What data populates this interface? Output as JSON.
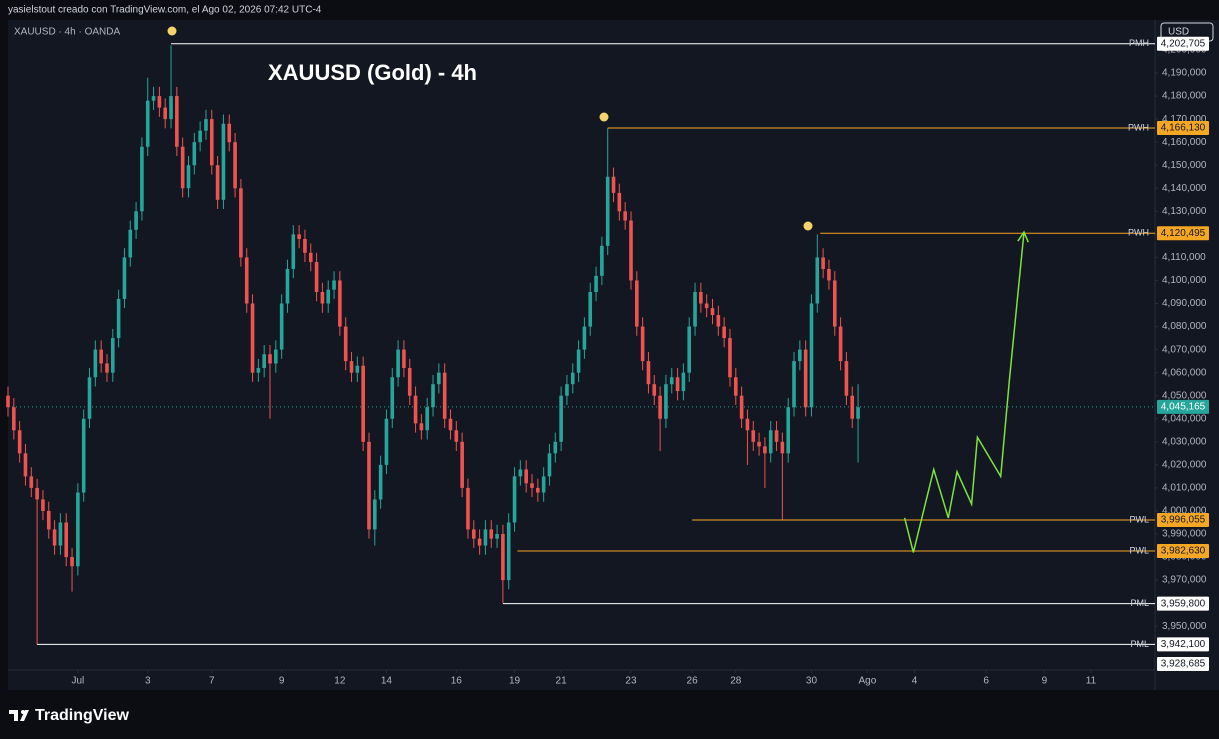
{
  "header": {
    "credit": "yasielstout creado con TradingView.com, el Ago 02, 2026 07:42 UTC-4",
    "symbol": "XAUUSD · 4h · OANDA",
    "currency": "USD"
  },
  "footer": {
    "brand": "TradingView"
  },
  "chart_data": {
    "type": "candlestick",
    "title": "XAUUSD (Gold) - 4h",
    "up_color": "#26a69a",
    "down_color": "#ef5350",
    "xlim": [
      0,
      197
    ],
    "ylim": [
      3931,
      4213
    ],
    "grid": false,
    "xticks": [
      {
        "value": 12,
        "label": "Jul"
      },
      {
        "value": 24,
        "label": "3"
      },
      {
        "value": 35,
        "label": "7"
      },
      {
        "value": 47,
        "label": "9"
      },
      {
        "value": 57,
        "label": "12"
      },
      {
        "value": 65,
        "label": "14"
      },
      {
        "value": 77,
        "label": "16"
      },
      {
        "value": 87,
        "label": "19"
      },
      {
        "value": 95,
        "label": "21"
      },
      {
        "value": 107,
        "label": "23"
      },
      {
        "value": 117.5,
        "label": "26"
      },
      {
        "value": 125,
        "label": "28"
      },
      {
        "value": 138,
        "label": "30"
      },
      {
        "value": 147.6,
        "label": "Ago"
      },
      {
        "value": 155.7,
        "label": "4"
      },
      {
        "value": 168,
        "label": "6"
      },
      {
        "value": 178,
        "label": "9"
      },
      {
        "value": 186,
        "label": "11"
      }
    ],
    "yticks": [
      {
        "value": 3950,
        "label": "3,950,000"
      },
      {
        "value": 3960,
        "label": "3,960,000"
      },
      {
        "value": 3970,
        "label": "3,970,000"
      },
      {
        "value": 3980,
        "label": "3,980,000"
      },
      {
        "value": 3990,
        "label": "3,990,000"
      },
      {
        "value": 4000,
        "label": "4,000,000"
      },
      {
        "value": 4010,
        "label": "4,010,000"
      },
      {
        "value": 4020,
        "label": "4,020,000"
      },
      {
        "value": 4030,
        "label": "4,030,000"
      },
      {
        "value": 4040,
        "label": "4,040,000"
      },
      {
        "value": 4050,
        "label": "4,050,000"
      },
      {
        "value": 4060,
        "label": "4,060,000"
      },
      {
        "value": 4070,
        "label": "4,070,000"
      },
      {
        "value": 4080,
        "label": "4,080,000"
      },
      {
        "value": 4090,
        "label": "4,090,000"
      },
      {
        "value": 4100,
        "label": "4,100,000"
      },
      {
        "value": 4110,
        "label": "4,110,000"
      },
      {
        "value": 4120,
        "label": "4,120,000"
      },
      {
        "value": 4130,
        "label": "4,130,000"
      },
      {
        "value": 4140,
        "label": "4,140,000"
      },
      {
        "value": 4150,
        "label": "4,150,000"
      },
      {
        "value": 4160,
        "label": "4,160,000"
      },
      {
        "value": 4170,
        "label": "4,170,000"
      },
      {
        "value": 4180,
        "label": "4,180,000"
      },
      {
        "value": 4190,
        "label": "4,190,000"
      },
      {
        "value": 4200,
        "label": "4,200,000"
      }
    ],
    "open": [
      4050,
      4045,
      4035,
      4025,
      4015,
      4010,
      4005,
      4000,
      3992,
      3985,
      3995,
      3980,
      3976,
      4008,
      4040,
      4058,
      4070,
      4064,
      4060,
      4075,
      4092,
      4110,
      4122,
      4130,
      4158,
      4178,
      4180,
      4175,
      4170,
      4180,
      4158,
      4140,
      4150,
      4160,
      4165,
      4170,
      4150,
      4135,
      4168,
      4160,
      4140,
      4110,
      4090,
      4060,
      4062,
      4068,
      4064,
      4070,
      4090,
      4105,
      4120,
      4118,
      4112,
      4108,
      4095,
      4090,
      4096,
      4100,
      4080,
      4065,
      4060,
      4063,
      4030,
      3992,
      4005,
      4020,
      4040,
      4058,
      4070,
      4062,
      4050,
      4038,
      4035,
      4045,
      4055,
      4060,
      4040,
      4035,
      4030,
      4010,
      3992,
      3988,
      3985,
      3992,
      3988,
      3990,
      3970,
      3995,
      4015,
      4018,
      4012,
      4010,
      4008,
      4015,
      4025,
      4030,
      4050,
      4055,
      4060,
      4070,
      4080,
      4095,
      4102,
      4115,
      4145,
      4138,
      4130,
      4126,
      4100,
      4080,
      4065,
      4055,
      4050,
      4040,
      4055,
      4058,
      4052,
      4060,
      4080,
      4095,
      4090,
      4088,
      4085,
      4080,
      4075,
      4058,
      4050,
      4040,
      4035,
      4030,
      4028,
      4025,
      4035,
      4030,
      4025,
      4045,
      4065,
      4070,
      4045,
      4090,
      4110,
      4105,
      4100,
      4080,
      4065,
      4050,
      4040
    ],
    "high": [
      4054,
      4049,
      4039,
      4029,
      4019,
      4014,
      4009,
      4004,
      3996,
      3999,
      3999,
      3984,
      4012,
      4044,
      4062,
      4074,
      4074,
      4068,
      4079,
      4096,
      4114,
      4126,
      4134,
      4162,
      4188,
      4184,
      4184,
      4179,
      4202,
      4184,
      4162,
      4154,
      4164,
      4169,
      4174,
      4174,
      4154,
      4172,
      4172,
      4164,
      4144,
      4114,
      4094,
      4066,
      4072,
      4072,
      4074,
      4094,
      4109,
      4124,
      4124,
      4122,
      4116,
      4112,
      4099,
      4100,
      4104,
      4104,
      4084,
      4069,
      4067,
      4067,
      4034,
      4009,
      4024,
      4044,
      4062,
      4074,
      4074,
      4066,
      4054,
      4042,
      4049,
      4059,
      4064,
      4064,
      4044,
      4039,
      4034,
      4014,
      3996,
      3992,
      3996,
      3996,
      3994,
      3994,
      3999,
      4019,
      4022,
      4022,
      4016,
      4014,
      4019,
      4029,
      4034,
      4054,
      4059,
      4064,
      4074,
      4084,
      4099,
      4106,
      4119,
      4166,
      4149,
      4142,
      4134,
      4130,
      4104,
      4084,
      4069,
      4059,
      4054,
      4059,
      4062,
      4062,
      4064,
      4084,
      4099,
      4099,
      4094,
      4092,
      4089,
      4084,
      4079,
      4062,
      4054,
      4044,
      4039,
      4034,
      4032,
      4039,
      4039,
      4034,
      4049,
      4069,
      4074,
      4074,
      4094,
      4120,
      4114,
      4109,
      4104,
      4084,
      4069,
      4054,
      4055
    ],
    "low": [
      4041,
      4031,
      4021,
      4011,
      4006,
      3942,
      3996,
      3988,
      3981,
      3981,
      3976,
      3965,
      3972,
      4004,
      4036,
      4054,
      4060,
      4056,
      4056,
      4071,
      4088,
      4106,
      4118,
      4126,
      4154,
      4174,
      4171,
      4166,
      4166,
      4154,
      4136,
      4136,
      4146,
      4156,
      4161,
      4146,
      4131,
      4131,
      4156,
      4136,
      4106,
      4086,
      4056,
      4056,
      4058,
      4040,
      4060,
      4066,
      4086,
      4101,
      4114,
      4108,
      4104,
      4091,
      4086,
      4086,
      4092,
      4076,
      4061,
      4056,
      4056,
      4026,
      3988,
      3985,
      4001,
      4016,
      4036,
      4054,
      4058,
      4046,
      4034,
      4031,
      4031,
      4041,
      4051,
      4036,
      4031,
      4026,
      4006,
      3988,
      3984,
      3981,
      3981,
      3984,
      3984,
      3960,
      3966,
      3991,
      4011,
      4008,
      4006,
      4004,
      4004,
      4011,
      4021,
      4026,
      4046,
      4051,
      4056,
      4066,
      4076,
      4091,
      4098,
      4111,
      4134,
      4126,
      4122,
      4096,
      4076,
      4061,
      4051,
      4046,
      4026,
      4036,
      4051,
      4048,
      4048,
      4056,
      4076,
      4086,
      4084,
      4081,
      4076,
      4071,
      4054,
      4046,
      4036,
      4020,
      4026,
      4024,
      4010,
      4021,
      4026,
      3996,
      4021,
      4041,
      4061,
      4041,
      4041,
      4086,
      4101,
      4096,
      4076,
      4061,
      4046,
      4036,
      4021
    ],
    "close": [
      4045,
      4035,
      4025,
      4015,
      4010,
      4005,
      4000,
      3992,
      3985,
      3995,
      3980,
      3976,
      4008,
      4040,
      4058,
      4070,
      4064,
      4060,
      4075,
      4092,
      4110,
      4122,
      4130,
      4158,
      4178,
      4180,
      4175,
      4170,
      4180,
      4158,
      4140,
      4150,
      4160,
      4165,
      4170,
      4150,
      4135,
      4168,
      4160,
      4140,
      4110,
      4090,
      4060,
      4062,
      4068,
      4064,
      4070,
      4090,
      4105,
      4120,
      4118,
      4112,
      4108,
      4095,
      4090,
      4096,
      4100,
      4080,
      4065,
      4060,
      4063,
      4030,
      3992,
      4005,
      4020,
      4040,
      4058,
      4070,
      4062,
      4050,
      4038,
      4035,
      4045,
      4055,
      4060,
      4040,
      4035,
      4030,
      4010,
      3992,
      3988,
      3985,
      3992,
      3988,
      3990,
      3970,
      3995,
      4015,
      4018,
      4012,
      4010,
      4008,
      4015,
      4025,
      4030,
      4050,
      4055,
      4060,
      4070,
      4080,
      4095,
      4102,
      4115,
      4145,
      4138,
      4130,
      4126,
      4100,
      4080,
      4065,
      4055,
      4050,
      4040,
      4055,
      4058,
      4052,
      4060,
      4080,
      4095,
      4090,
      4088,
      4085,
      4080,
      4075,
      4058,
      4050,
      4040,
      4035,
      4030,
      4028,
      4025,
      4035,
      4030,
      4025,
      4045,
      4065,
      4070,
      4045,
      4090,
      4110,
      4105,
      4100,
      4080,
      4065,
      4050,
      4040,
      4045
    ],
    "levels": [
      {
        "name": "PMH",
        "value": 4202.705,
        "label": "4,202,705",
        "start": 28,
        "color": "#ffffff"
      },
      {
        "name": "PWH",
        "value": 4166.13,
        "label": "4,166,130",
        "start": 103,
        "color": "#f5a623"
      },
      {
        "name": "PWH",
        "value": 4120.495,
        "label": "4,120,495",
        "start": 139.5,
        "color": "#f5a623"
      },
      {
        "name": "PWL",
        "value": 3996.055,
        "label": "3,996,055",
        "start": 117.5,
        "color": "#f5a623"
      },
      {
        "name": "PWL",
        "value": 3982.63,
        "label": "3,982,630",
        "start": 87.5,
        "color": "#f5a623"
      },
      {
        "name": "PML",
        "value": 3959.8,
        "label": "3,959,800",
        "start": 85,
        "color": "#ffffff"
      },
      {
        "name": "PML",
        "value": 3942.1,
        "label": "3,942,100",
        "start": 5,
        "color": "#ffffff"
      }
    ],
    "last_price": {
      "value": 4045.165,
      "label": "4,045,165",
      "color": "#26a69a"
    },
    "axis_marker": {
      "value": 3928.685,
      "label": "3,928,685"
    },
    "projection": {
      "color": "#7ee33a",
      "x": [
        154,
        155.5,
        159,
        161.5,
        163,
        165.5,
        166.5,
        170.5,
        172,
        174.5
      ],
      "y": [
        3997,
        3982,
        4018,
        3997,
        4017,
        4003,
        4032,
        4015,
        4057,
        4121
      ]
    }
  }
}
